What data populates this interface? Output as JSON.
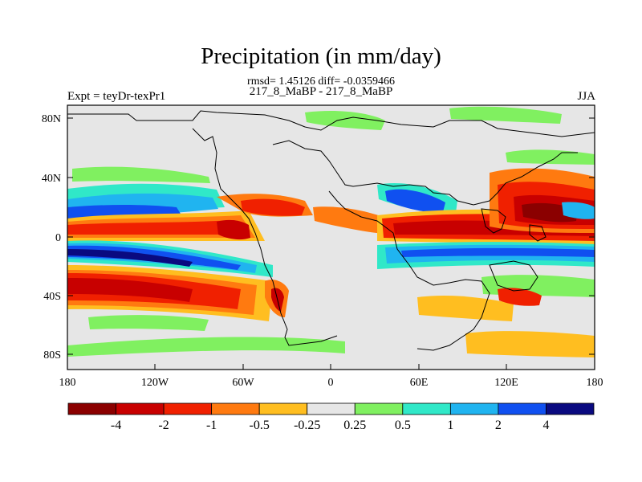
{
  "title": "Precipitation (in mm/day)",
  "stats_line": "rmsd= 1.45126 diff= -0.0359466",
  "subtitle": "217_8_MaBP - 217_8_MaBP",
  "left_label": "Expt = teyDr-texPr1",
  "right_label": "JJA",
  "lat_ticks": [
    "80N",
    "40N",
    "0",
    "40S",
    "80S"
  ],
  "lon_ticks": [
    "180",
    "120W",
    "60W",
    "0",
    "60E",
    "120E",
    "180"
  ],
  "colorbar": {
    "colors": [
      "#8b0000",
      "#c80000",
      "#f02000",
      "#ff7a10",
      "#ffbe20",
      "#e6e6e6",
      "#80f060",
      "#30e8c8",
      "#20b4f0",
      "#1050f0",
      "#0a0a80"
    ],
    "labels": [
      "-4",
      "-2",
      "-1",
      "-0.5",
      "-0.25",
      "0.25",
      "0.5",
      "1",
      "2",
      "4"
    ]
  }
}
